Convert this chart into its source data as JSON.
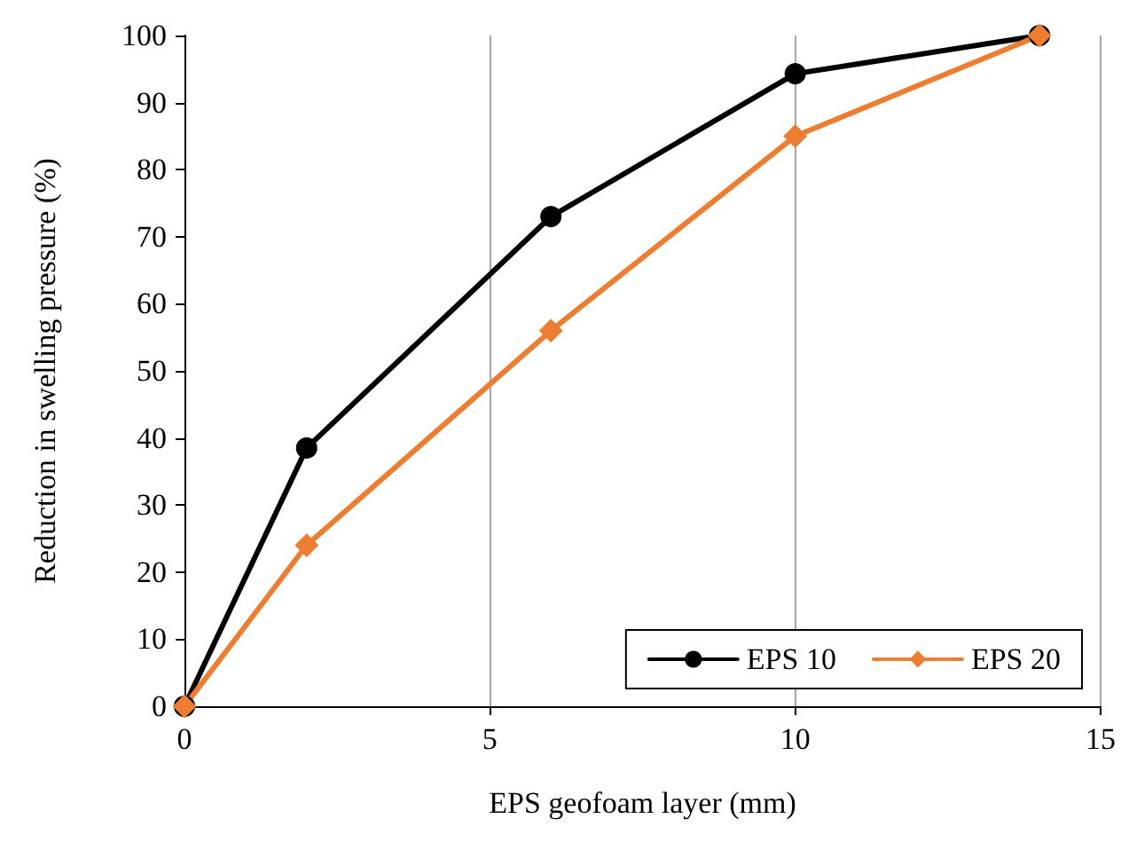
{
  "chart_data": {
    "type": "line",
    "xlabel": "EPS geofoam layer (mm)",
    "ylabel": "Reduction in swelling pressure (%)",
    "x": [
      0,
      2,
      6,
      10,
      14
    ],
    "series": [
      {
        "name": "EPS 10",
        "color": "#000000",
        "marker": "circle",
        "values": [
          0,
          38.5,
          73,
          94.3,
          100
        ]
      },
      {
        "name": "EPS 20",
        "color": "#ed7d31",
        "marker": "diamond",
        "values": [
          0,
          24,
          56,
          85,
          100
        ]
      }
    ],
    "xlim": [
      0,
      15
    ],
    "xticks": [
      0,
      5,
      10,
      15
    ],
    "ylim": [
      0,
      100
    ],
    "yticks": [
      0,
      10,
      20,
      30,
      40,
      50,
      60,
      70,
      80,
      90,
      100
    ],
    "grid": "x",
    "legend": "bottom right",
    "line_style": "solid"
  }
}
